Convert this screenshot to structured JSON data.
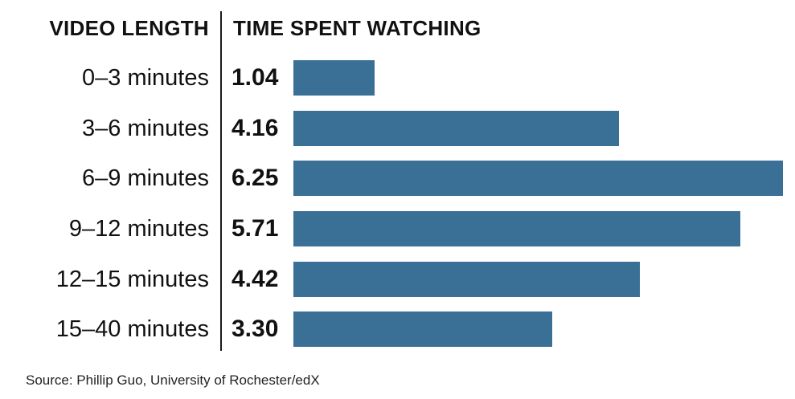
{
  "chart_data": {
    "type": "bar",
    "orientation": "horizontal",
    "title": "",
    "xlabel": "TIME SPENT WATCHING",
    "ylabel": "VIDEO LENGTH",
    "categories": [
      "0–3 minutes",
      "3–6 minutes",
      "6–9 minutes",
      "9–12 minutes",
      "12–15 minutes",
      "15–40 minutes"
    ],
    "values": [
      1.04,
      4.16,
      6.25,
      5.71,
      4.42,
      3.3
    ],
    "value_labels": [
      "1.04",
      "4.16",
      "6.25",
      "5.71",
      "4.42",
      "3.30"
    ],
    "xlim": [
      0,
      6.25
    ],
    "grid": false,
    "legend": null,
    "bar_color": "#3a7096",
    "source": "Source: Phillip Guo, University of Rochester/edX"
  },
  "header": {
    "left": "VIDEO LENGTH",
    "right": "TIME SPENT WATCHING"
  },
  "rows": [
    {
      "label": "0–3 minutes",
      "value": "1.04"
    },
    {
      "label": "3–6 minutes",
      "value": "4.16"
    },
    {
      "label": "6–9 minutes",
      "value": "6.25"
    },
    {
      "label": "9–12 minutes",
      "value": "5.71"
    },
    {
      "label": "12–15 minutes",
      "value": "4.42"
    },
    {
      "label": "15–40 minutes",
      "value": "3.30"
    }
  ],
  "footer": {
    "source": "Source: Phillip Guo, University of Rochester/edX"
  }
}
